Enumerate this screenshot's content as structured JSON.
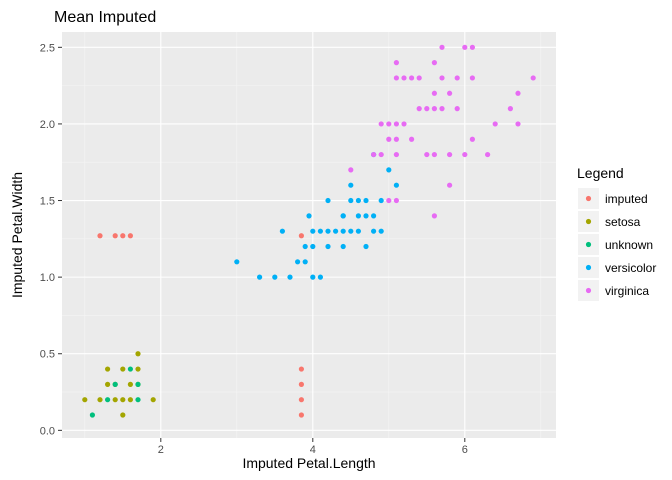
{
  "chart_data": {
    "type": "scatter",
    "title": "Mean Imputed",
    "xlabel": "Imputed Petal.Length",
    "ylabel": "Imputed Petal.Width",
    "xlim": [
      0.7,
      7.2
    ],
    "ylim": [
      -0.05,
      2.6
    ],
    "xticks": [
      2,
      4,
      6
    ],
    "yticks": [
      0.0,
      0.5,
      1.0,
      1.5,
      2.0,
      2.5
    ],
    "xtick_labels": [
      "2",
      "4",
      "6"
    ],
    "ytick_labels": [
      "0.0",
      "0.5",
      "1.0",
      "1.5",
      "2.0",
      "2.5"
    ],
    "grid": true,
    "legend": {
      "title": "Legend",
      "position": "right"
    },
    "series": [
      {
        "name": "imputed",
        "color": "#F8766D",
        "points": [
          [
            1.2,
            1.27
          ],
          [
            1.4,
            1.27
          ],
          [
            1.5,
            1.27
          ],
          [
            1.6,
            1.27
          ],
          [
            3.85,
            1.27
          ],
          [
            3.85,
            0.4
          ],
          [
            3.85,
            0.3
          ],
          [
            3.85,
            0.2
          ],
          [
            3.85,
            0.1
          ]
        ]
      },
      {
        "name": "setosa",
        "color": "#A3A500",
        "points": [
          [
            1.0,
            0.2
          ],
          [
            1.3,
            0.4
          ],
          [
            1.3,
            0.3
          ],
          [
            1.4,
            0.3
          ],
          [
            1.4,
            0.2
          ],
          [
            1.5,
            0.4
          ],
          [
            1.5,
            0.2
          ],
          [
            1.5,
            0.1
          ],
          [
            1.6,
            0.3
          ],
          [
            1.6,
            0.2
          ],
          [
            1.7,
            0.5
          ],
          [
            1.7,
            0.4
          ],
          [
            1.7,
            0.3
          ],
          [
            1.9,
            0.2
          ],
          [
            1.2,
            0.2
          ]
        ]
      },
      {
        "name": "unknown",
        "color": "#00BF7D",
        "points": [
          [
            1.1,
            0.1
          ],
          [
            1.3,
            0.2
          ],
          [
            1.4,
            0.3
          ],
          [
            1.6,
            0.4
          ],
          [
            1.7,
            0.3
          ],
          [
            1.7,
            0.2
          ]
        ]
      },
      {
        "name": "versicolor",
        "color": "#00B0F6",
        "points": [
          [
            3.0,
            1.1
          ],
          [
            3.3,
            1.0
          ],
          [
            3.5,
            1.0
          ],
          [
            3.6,
            1.3
          ],
          [
            3.7,
            1.0
          ],
          [
            3.8,
            1.1
          ],
          [
            3.9,
            1.1
          ],
          [
            3.9,
            1.2
          ],
          [
            3.95,
            1.4
          ],
          [
            4.0,
            1.0
          ],
          [
            4.0,
            1.2
          ],
          [
            4.0,
            1.3
          ],
          [
            4.1,
            1.0
          ],
          [
            4.1,
            1.3
          ],
          [
            4.2,
            1.2
          ],
          [
            4.2,
            1.3
          ],
          [
            4.3,
            1.3
          ],
          [
            4.4,
            1.2
          ],
          [
            4.4,
            1.3
          ],
          [
            4.4,
            1.4
          ],
          [
            4.5,
            1.3
          ],
          [
            4.5,
            1.5
          ],
          [
            4.6,
            1.3
          ],
          [
            4.6,
            1.4
          ],
          [
            4.7,
            1.2
          ],
          [
            4.7,
            1.4
          ],
          [
            4.7,
            1.5
          ],
          [
            4.8,
            1.4
          ],
          [
            4.8,
            1.8
          ],
          [
            4.9,
            1.5
          ],
          [
            5.0,
            1.7
          ],
          [
            5.1,
            1.6
          ],
          [
            4.5,
            1.6
          ],
          [
            4.2,
            1.5
          ],
          [
            4.4,
            1.4
          ],
          [
            4.6,
            1.5
          ],
          [
            4.8,
            1.3
          ],
          [
            4.9,
            1.3
          ]
        ]
      },
      {
        "name": "virginica",
        "color": "#E76BF3",
        "points": [
          [
            4.5,
            1.7
          ],
          [
            4.8,
            1.8
          ],
          [
            4.9,
            1.8
          ],
          [
            4.9,
            2.0
          ],
          [
            5.0,
            1.5
          ],
          [
            5.0,
            1.9
          ],
          [
            5.0,
            2.0
          ],
          [
            5.1,
            1.5
          ],
          [
            5.1,
            1.8
          ],
          [
            5.1,
            1.9
          ],
          [
            5.1,
            2.0
          ],
          [
            5.1,
            2.3
          ],
          [
            5.1,
            2.4
          ],
          [
            5.2,
            2.0
          ],
          [
            5.2,
            2.3
          ],
          [
            5.3,
            1.9
          ],
          [
            5.3,
            2.3
          ],
          [
            5.4,
            2.1
          ],
          [
            5.4,
            2.3
          ],
          [
            5.5,
            1.8
          ],
          [
            5.5,
            2.1
          ],
          [
            5.6,
            1.4
          ],
          [
            5.6,
            1.8
          ],
          [
            5.6,
            2.1
          ],
          [
            5.6,
            2.2
          ],
          [
            5.6,
            2.4
          ],
          [
            5.7,
            2.1
          ],
          [
            5.7,
            2.3
          ],
          [
            5.7,
            2.5
          ],
          [
            5.8,
            1.6
          ],
          [
            5.8,
            1.8
          ],
          [
            5.8,
            2.2
          ],
          [
            5.9,
            2.1
          ],
          [
            5.9,
            2.3
          ],
          [
            6.0,
            1.8
          ],
          [
            6.0,
            2.5
          ],
          [
            6.1,
            1.9
          ],
          [
            6.1,
            2.3
          ],
          [
            6.1,
            2.5
          ],
          [
            6.3,
            1.8
          ],
          [
            6.4,
            2.0
          ],
          [
            6.6,
            2.1
          ],
          [
            6.7,
            2.0
          ],
          [
            6.7,
            2.2
          ],
          [
            6.9,
            2.3
          ]
        ]
      }
    ]
  }
}
